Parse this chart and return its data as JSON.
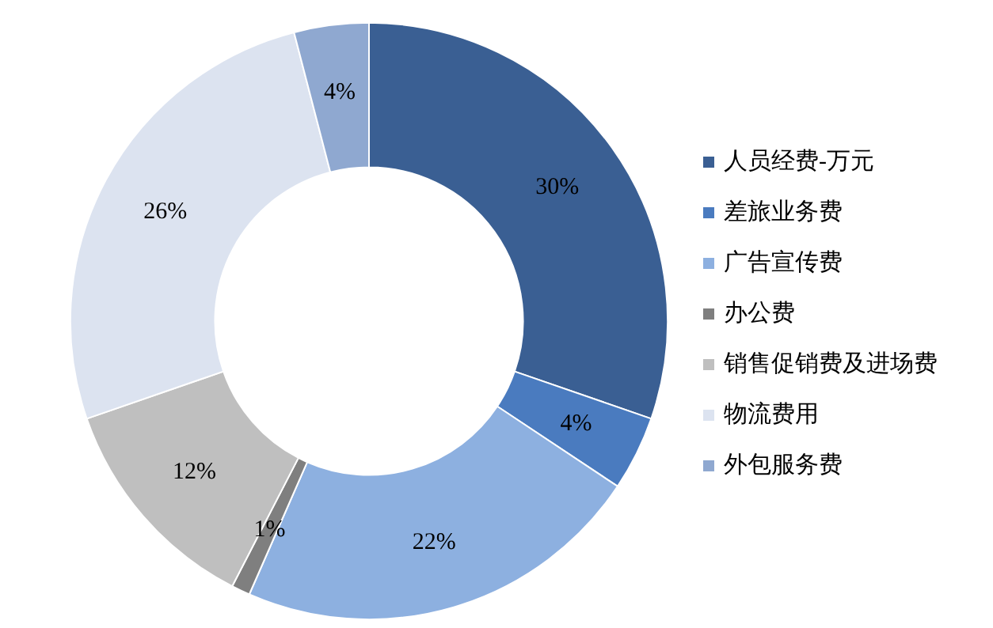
{
  "chart_data": {
    "type": "donut",
    "categories": [
      "人员经费-万元",
      "差旅业务费",
      "广告宣传费",
      "办公费",
      "销售促销费及进场费",
      "物流费用",
      "外包服务费"
    ],
    "values": [
      30,
      4,
      22,
      1,
      12,
      26,
      4
    ],
    "colors": [
      "#3a5f93",
      "#4a7bbf",
      "#8db0e0",
      "#7f7f7f",
      "#bfbfbf",
      "#dce3f0",
      "#8fa8d0"
    ],
    "value_labels": [
      "30%",
      "4%",
      "22%",
      "1%",
      "12%",
      "26%",
      "4%"
    ],
    "legend": "right"
  }
}
